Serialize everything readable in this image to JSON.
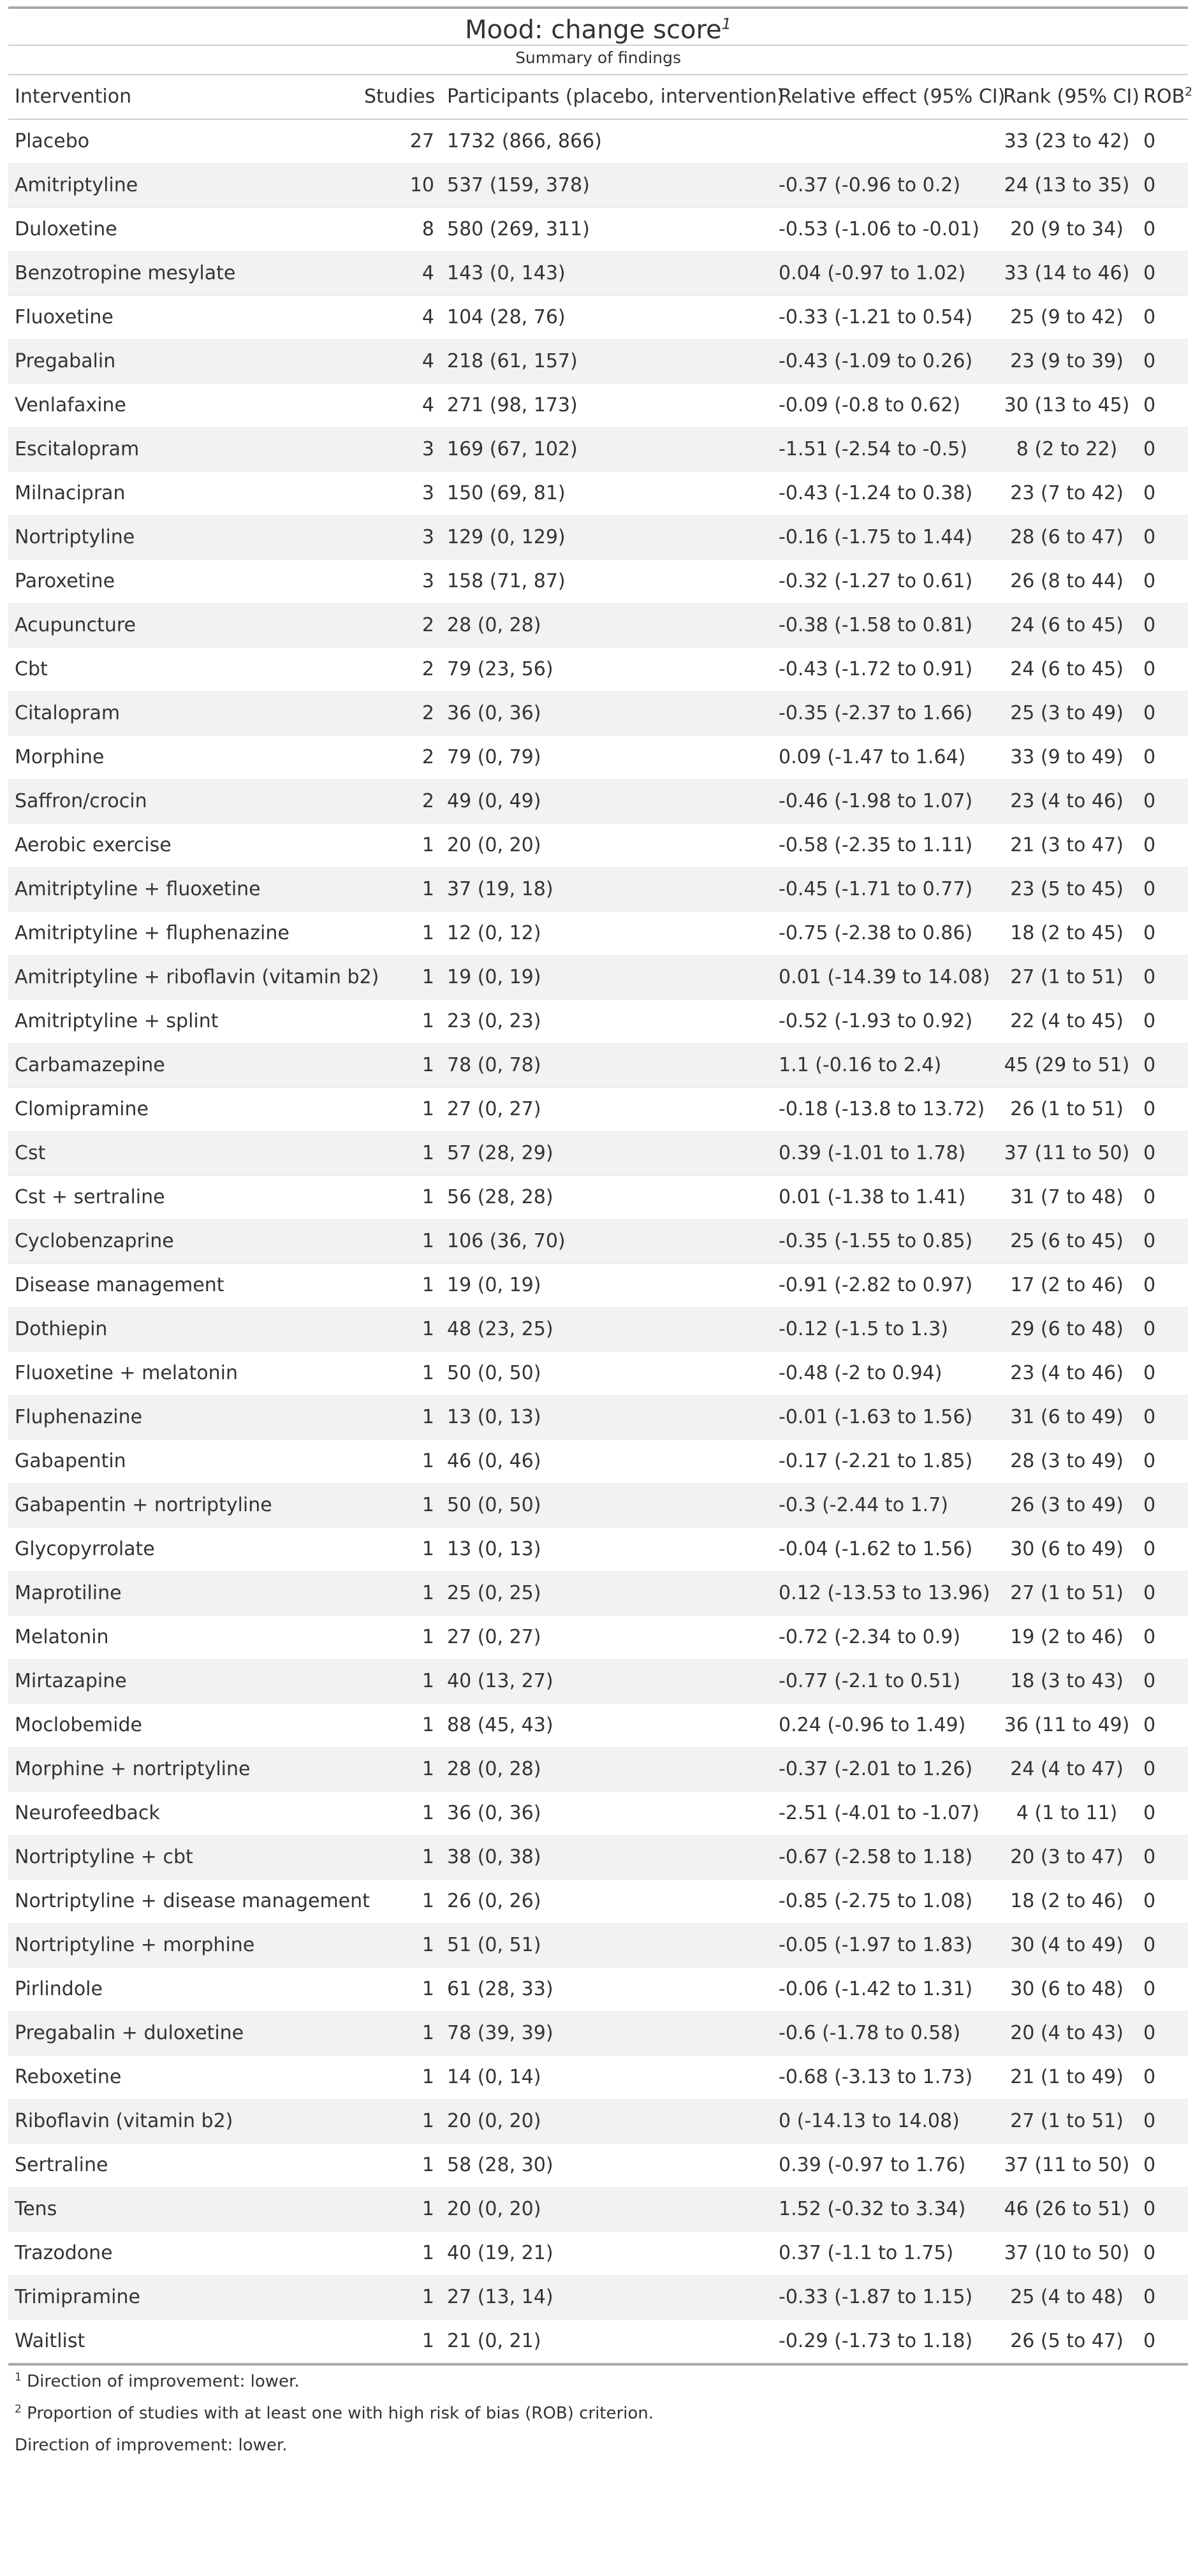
{
  "title": "Mood: change score",
  "title_mark": "1",
  "subtitle": "Summary of findings",
  "columns": {
    "intervention": "Intervention",
    "studies": "Studies",
    "participants": "Participants (placebo, intervention)",
    "relative_effect": "Relative effect (95% CI)",
    "rank": "Rank (95% CI)",
    "rob": "ROB",
    "rob_mark": "2"
  },
  "rows": [
    {
      "intervention": "Placebo",
      "studies": "27",
      "participants": "1732 (866, 866)",
      "effect": "",
      "rank": "33 (23 to 42)",
      "rob": "0"
    },
    {
      "intervention": "Amitriptyline",
      "studies": "10",
      "participants": "537 (159, 378)",
      "effect": "-0.37 (-0.96 to 0.2)",
      "rank": "24 (13 to 35)",
      "rob": "0"
    },
    {
      "intervention": "Duloxetine",
      "studies": "8",
      "participants": "580 (269, 311)",
      "effect": "-0.53 (-1.06 to -0.01)",
      "rank": "20 (9 to 34)",
      "rob": "0"
    },
    {
      "intervention": "Benzotropine mesylate",
      "studies": "4",
      "participants": "143 (0, 143)",
      "effect": "0.04 (-0.97 to 1.02)",
      "rank": "33 (14 to 46)",
      "rob": "0"
    },
    {
      "intervention": "Fluoxetine",
      "studies": "4",
      "participants": "104 (28, 76)",
      "effect": "-0.33 (-1.21 to 0.54)",
      "rank": "25 (9 to 42)",
      "rob": "0"
    },
    {
      "intervention": "Pregabalin",
      "studies": "4",
      "participants": "218 (61, 157)",
      "effect": "-0.43 (-1.09 to 0.26)",
      "rank": "23 (9 to 39)",
      "rob": "0"
    },
    {
      "intervention": "Venlafaxine",
      "studies": "4",
      "participants": "271 (98, 173)",
      "effect": "-0.09 (-0.8 to 0.62)",
      "rank": "30 (13 to 45)",
      "rob": "0"
    },
    {
      "intervention": "Escitalopram",
      "studies": "3",
      "participants": "169 (67, 102)",
      "effect": "-1.51 (-2.54 to -0.5)",
      "rank": "8 (2 to 22)",
      "rob": "0"
    },
    {
      "intervention": "Milnacipran",
      "studies": "3",
      "participants": "150 (69, 81)",
      "effect": "-0.43 (-1.24 to 0.38)",
      "rank": "23 (7 to 42)",
      "rob": "0"
    },
    {
      "intervention": "Nortriptyline",
      "studies": "3",
      "participants": "129 (0, 129)",
      "effect": "-0.16 (-1.75 to 1.44)",
      "rank": "28 (6 to 47)",
      "rob": "0"
    },
    {
      "intervention": "Paroxetine",
      "studies": "3",
      "participants": "158 (71, 87)",
      "effect": "-0.32 (-1.27 to 0.61)",
      "rank": "26 (8 to 44)",
      "rob": "0"
    },
    {
      "intervention": "Acupuncture",
      "studies": "2",
      "participants": "28 (0, 28)",
      "effect": "-0.38 (-1.58 to 0.81)",
      "rank": "24 (6 to 45)",
      "rob": "0"
    },
    {
      "intervention": "Cbt",
      "studies": "2",
      "participants": "79 (23, 56)",
      "effect": "-0.43 (-1.72 to 0.91)",
      "rank": "24 (6 to 45)",
      "rob": "0"
    },
    {
      "intervention": "Citalopram",
      "studies": "2",
      "participants": "36 (0, 36)",
      "effect": "-0.35 (-2.37 to 1.66)",
      "rank": "25 (3 to 49)",
      "rob": "0"
    },
    {
      "intervention": "Morphine",
      "studies": "2",
      "participants": "79 (0, 79)",
      "effect": "0.09 (-1.47 to 1.64)",
      "rank": "33 (9 to 49)",
      "rob": "0"
    },
    {
      "intervention": "Saffron/crocin",
      "studies": "2",
      "participants": "49 (0, 49)",
      "effect": "-0.46 (-1.98 to 1.07)",
      "rank": "23 (4 to 46)",
      "rob": "0"
    },
    {
      "intervention": "Aerobic exercise",
      "studies": "1",
      "participants": "20 (0, 20)",
      "effect": "-0.58 (-2.35 to 1.11)",
      "rank": "21 (3 to 47)",
      "rob": "0"
    },
    {
      "intervention": "Amitriptyline + fluoxetine",
      "studies": "1",
      "participants": "37 (19, 18)",
      "effect": "-0.45 (-1.71 to 0.77)",
      "rank": "23 (5 to 45)",
      "rob": "0"
    },
    {
      "intervention": "Amitriptyline + fluphenazine",
      "studies": "1",
      "participants": "12 (0, 12)",
      "effect": "-0.75 (-2.38 to 0.86)",
      "rank": "18 (2 to 45)",
      "rob": "0"
    },
    {
      "intervention": "Amitriptyline + riboflavin (vitamin b2)",
      "studies": "1",
      "participants": "19 (0, 19)",
      "effect": "0.01 (-14.39 to 14.08)",
      "rank": "27 (1 to 51)",
      "rob": "0"
    },
    {
      "intervention": "Amitriptyline + splint",
      "studies": "1",
      "participants": "23 (0, 23)",
      "effect": "-0.52 (-1.93 to 0.92)",
      "rank": "22 (4 to 45)",
      "rob": "0"
    },
    {
      "intervention": "Carbamazepine",
      "studies": "1",
      "participants": "78 (0, 78)",
      "effect": "1.1 (-0.16 to 2.4)",
      "rank": "45 (29 to 51)",
      "rob": "0"
    },
    {
      "intervention": "Clomipramine",
      "studies": "1",
      "participants": "27 (0, 27)",
      "effect": "-0.18 (-13.8 to 13.72)",
      "rank": "26 (1 to 51)",
      "rob": "0"
    },
    {
      "intervention": "Cst",
      "studies": "1",
      "participants": "57 (28, 29)",
      "effect": "0.39 (-1.01 to 1.78)",
      "rank": "37 (11 to 50)",
      "rob": "0"
    },
    {
      "intervention": "Cst + sertraline",
      "studies": "1",
      "participants": "56 (28, 28)",
      "effect": "0.01 (-1.38 to 1.41)",
      "rank": "31 (7 to 48)",
      "rob": "0"
    },
    {
      "intervention": "Cyclobenzaprine",
      "studies": "1",
      "participants": "106 (36, 70)",
      "effect": "-0.35 (-1.55 to 0.85)",
      "rank": "25 (6 to 45)",
      "rob": "0"
    },
    {
      "intervention": "Disease management",
      "studies": "1",
      "participants": "19 (0, 19)",
      "effect": "-0.91 (-2.82 to 0.97)",
      "rank": "17 (2 to 46)",
      "rob": "0"
    },
    {
      "intervention": "Dothiepin",
      "studies": "1",
      "participants": "48 (23, 25)",
      "effect": "-0.12 (-1.5 to 1.3)",
      "rank": "29 (6 to 48)",
      "rob": "0"
    },
    {
      "intervention": "Fluoxetine + melatonin",
      "studies": "1",
      "participants": "50 (0, 50)",
      "effect": "-0.48 (-2 to 0.94)",
      "rank": "23 (4 to 46)",
      "rob": "0"
    },
    {
      "intervention": "Fluphenazine",
      "studies": "1",
      "participants": "13 (0, 13)",
      "effect": "-0.01 (-1.63 to 1.56)",
      "rank": "31 (6 to 49)",
      "rob": "0"
    },
    {
      "intervention": "Gabapentin",
      "studies": "1",
      "participants": "46 (0, 46)",
      "effect": "-0.17 (-2.21 to 1.85)",
      "rank": "28 (3 to 49)",
      "rob": "0"
    },
    {
      "intervention": "Gabapentin + nortriptyline",
      "studies": "1",
      "participants": "50 (0, 50)",
      "effect": "-0.3 (-2.44 to 1.7)",
      "rank": "26 (3 to 49)",
      "rob": "0"
    },
    {
      "intervention": "Glycopyrrolate",
      "studies": "1",
      "participants": "13 (0, 13)",
      "effect": "-0.04 (-1.62 to 1.56)",
      "rank": "30 (6 to 49)",
      "rob": "0"
    },
    {
      "intervention": "Maprotiline",
      "studies": "1",
      "participants": "25 (0, 25)",
      "effect": "0.12 (-13.53 to 13.96)",
      "rank": "27 (1 to 51)",
      "rob": "0"
    },
    {
      "intervention": "Melatonin",
      "studies": "1",
      "participants": "27 (0, 27)",
      "effect": "-0.72 (-2.34 to 0.9)",
      "rank": "19 (2 to 46)",
      "rob": "0"
    },
    {
      "intervention": "Mirtazapine",
      "studies": "1",
      "participants": "40 (13, 27)",
      "effect": "-0.77 (-2.1 to 0.51)",
      "rank": "18 (3 to 43)",
      "rob": "0"
    },
    {
      "intervention": "Moclobemide",
      "studies": "1",
      "participants": "88 (45, 43)",
      "effect": "0.24 (-0.96 to 1.49)",
      "rank": "36 (11 to 49)",
      "rob": "0"
    },
    {
      "intervention": "Morphine + nortriptyline",
      "studies": "1",
      "participants": "28 (0, 28)",
      "effect": "-0.37 (-2.01 to 1.26)",
      "rank": "24 (4 to 47)",
      "rob": "0"
    },
    {
      "intervention": "Neurofeedback",
      "studies": "1",
      "participants": "36 (0, 36)",
      "effect": "-2.51 (-4.01 to -1.07)",
      "rank": "4 (1 to 11)",
      "rob": "0"
    },
    {
      "intervention": "Nortriptyline + cbt",
      "studies": "1",
      "participants": "38 (0, 38)",
      "effect": "-0.67 (-2.58 to 1.18)",
      "rank": "20 (3 to 47)",
      "rob": "0"
    },
    {
      "intervention": "Nortriptyline + disease management",
      "studies": "1",
      "participants": "26 (0, 26)",
      "effect": "-0.85 (-2.75 to 1.08)",
      "rank": "18 (2 to 46)",
      "rob": "0"
    },
    {
      "intervention": "Nortriptyline + morphine",
      "studies": "1",
      "participants": "51 (0, 51)",
      "effect": "-0.05 (-1.97 to 1.83)",
      "rank": "30 (4 to 49)",
      "rob": "0"
    },
    {
      "intervention": "Pirlindole",
      "studies": "1",
      "participants": "61 (28, 33)",
      "effect": "-0.06 (-1.42 to 1.31)",
      "rank": "30 (6 to 48)",
      "rob": "0"
    },
    {
      "intervention": "Pregabalin + duloxetine",
      "studies": "1",
      "participants": "78 (39, 39)",
      "effect": "-0.6 (-1.78 to 0.58)",
      "rank": "20 (4 to 43)",
      "rob": "0"
    },
    {
      "intervention": "Reboxetine",
      "studies": "1",
      "participants": "14 (0, 14)",
      "effect": "-0.68 (-3.13 to 1.73)",
      "rank": "21 (1 to 49)",
      "rob": "0"
    },
    {
      "intervention": "Riboflavin (vitamin b2)",
      "studies": "1",
      "participants": "20 (0, 20)",
      "effect": "0 (-14.13 to 14.08)",
      "rank": "27 (1 to 51)",
      "rob": "0"
    },
    {
      "intervention": "Sertraline",
      "studies": "1",
      "participants": "58 (28, 30)",
      "effect": "0.39 (-0.97 to 1.76)",
      "rank": "37 (11 to 50)",
      "rob": "0"
    },
    {
      "intervention": "Tens",
      "studies": "1",
      "participants": "20 (0, 20)",
      "effect": "1.52 (-0.32 to 3.34)",
      "rank": "46 (26 to 51)",
      "rob": "0"
    },
    {
      "intervention": "Trazodone",
      "studies": "1",
      "participants": "40 (19, 21)",
      "effect": "0.37 (-1.1 to 1.75)",
      "rank": "37 (10 to 50)",
      "rob": "0"
    },
    {
      "intervention": "Trimipramine",
      "studies": "1",
      "participants": "27 (13, 14)",
      "effect": "-0.33 (-1.87 to 1.15)",
      "rank": "25 (4 to 48)",
      "rob": "0"
    },
    {
      "intervention": "Waitlist",
      "studies": "1",
      "participants": "21 (0, 21)",
      "effect": "-0.29 (-1.73 to 1.18)",
      "rank": "26 (5 to 47)",
      "rob": "0"
    }
  ],
  "footnotes": [
    {
      "mark": "1",
      "text": "Direction of improvement: lower."
    },
    {
      "mark": "2",
      "text": "Proportion of studies with at least one with high risk of bias (ROB) criterion."
    },
    {
      "mark": "",
      "text": "Direction of improvement: lower."
    }
  ]
}
